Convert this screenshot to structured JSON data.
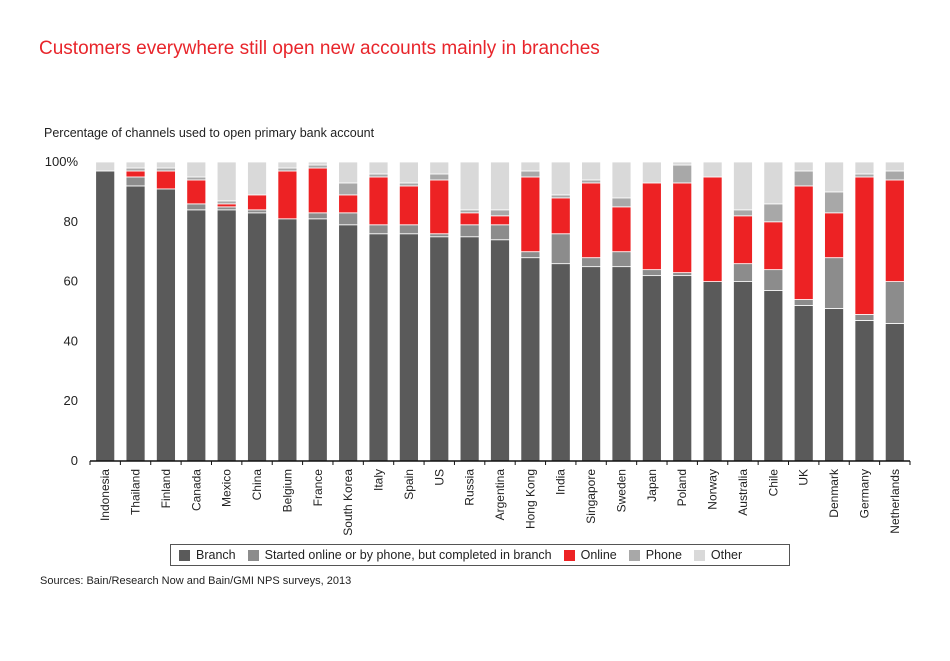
{
  "chart_data": {
    "type": "bar",
    "stacked": true,
    "title": "Customers everywhere still open new accounts mainly in branches",
    "subtitle": "Percentage of channels used to open primary bank account",
    "source": "Sources: Bain/Research Now and Bain/GMI NPS surveys, 2013",
    "ylim": [
      0,
      100
    ],
    "yticks": [
      "0",
      "20",
      "40",
      "60",
      "80",
      "100%"
    ],
    "yticks_values": [
      0,
      20,
      40,
      60,
      80,
      100
    ],
    "legend_placement": "bottom",
    "categories": [
      "Indonesia",
      "Thailand",
      "Finland",
      "Canada",
      "Mexico",
      "China",
      "Belgium",
      "France",
      "South Korea",
      "Italy",
      "Spain",
      "US",
      "Russia",
      "Argentina",
      "Hong Kong",
      "India",
      "Singapore",
      "Sweden",
      "Japan",
      "Poland",
      "Norway",
      "Australia",
      "Chile",
      "UK",
      "Denmark",
      "Germany",
      "Netherlands"
    ],
    "series": [
      {
        "name": "Branch",
        "color": "#5a5a5a",
        "values": [
          97,
          92,
          91,
          84,
          84,
          83,
          81,
          81,
          79,
          76,
          76,
          75,
          75,
          74,
          68,
          66,
          65,
          65,
          62,
          62,
          60,
          60,
          57,
          52,
          51,
          47,
          46
        ]
      },
      {
        "name": "Started online or by phone, but completed in branch",
        "color": "#8c8c8c",
        "values": [
          0,
          3,
          0,
          2,
          1,
          1,
          0,
          2,
          4,
          3,
          3,
          1,
          4,
          5,
          2,
          10,
          3,
          5,
          2,
          1,
          0,
          6,
          7,
          2,
          17,
          2,
          14
        ]
      },
      {
        "name": "Online",
        "color": "#ed2224",
        "values": [
          0,
          2,
          6,
          8,
          1,
          5,
          16,
          15,
          6,
          16,
          13,
          18,
          4,
          3,
          25,
          12,
          25,
          15,
          29,
          30,
          35,
          16,
          16,
          38,
          15,
          46,
          34
        ]
      },
      {
        "name": "Phone",
        "color": "#a8a8a8",
        "values": [
          0,
          1,
          1,
          1,
          1,
          0,
          1,
          1,
          4,
          1,
          1,
          2,
          1,
          2,
          2,
          1,
          1,
          3,
          0,
          6,
          0,
          2,
          6,
          5,
          7,
          1,
          3
        ]
      },
      {
        "name": "Other",
        "color": "#d9d9d9",
        "values": [
          3,
          2,
          2,
          5,
          13,
          11,
          2,
          1,
          7,
          4,
          7,
          4,
          16,
          16,
          3,
          11,
          6,
          12,
          7,
          1,
          5,
          16,
          14,
          3,
          10,
          4,
          3
        ]
      }
    ]
  }
}
